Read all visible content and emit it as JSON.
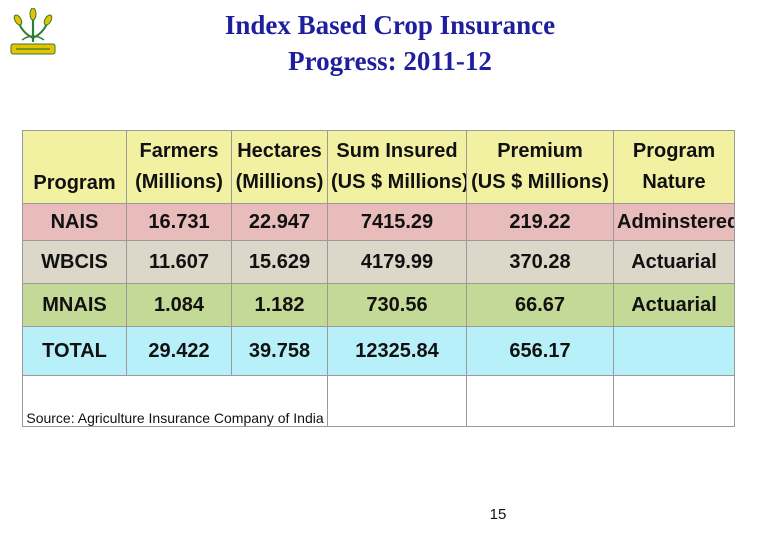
{
  "header": {
    "title_line1": "Index Based Crop Insurance",
    "title_line2": "Progress:  2011-12",
    "logo_icon": "agriculture-emblem-icon"
  },
  "table": {
    "columns": [
      {
        "line1": "",
        "line2": "Program"
      },
      {
        "line1": "Farmers",
        "line2": "(Millions)"
      },
      {
        "line1": "Hectares",
        "line2": "(Millions)"
      },
      {
        "line1": "Sum Insured",
        "line2": "(US $ Millions)"
      },
      {
        "line1": "Premium",
        "line2": "(US $ Millions)"
      },
      {
        "line1": "Program",
        "line2": "Nature"
      }
    ],
    "rows": [
      {
        "cells": [
          "NAIS",
          "16.731",
          "22.947",
          "7415.29",
          "219.22",
          "Adminstered"
        ]
      },
      {
        "cells": [
          "WBCIS",
          "11.607",
          "15.629",
          "4179.99",
          "370.28",
          "Actuarial"
        ]
      },
      {
        "cells": [
          "MNAIS",
          "1.084",
          "1.182",
          "730.56",
          "66.67",
          "Actuarial"
        ]
      },
      {
        "cells": [
          "TOTAL",
          "29.422",
          "39.758",
          "12325.84",
          "656.17",
          ""
        ]
      }
    ],
    "source": "Source: Agriculture Insurance Company of India"
  },
  "footer": {
    "page_number": "15"
  },
  "colors": {
    "title": "#1f1f9e",
    "header_bg": "#f2f1a2",
    "nais_bg": "#e9bcbc",
    "wbcis_bg": "#ddd7c9",
    "mnais_bg": "#c4d996",
    "total_bg": "#b8f0fa"
  }
}
